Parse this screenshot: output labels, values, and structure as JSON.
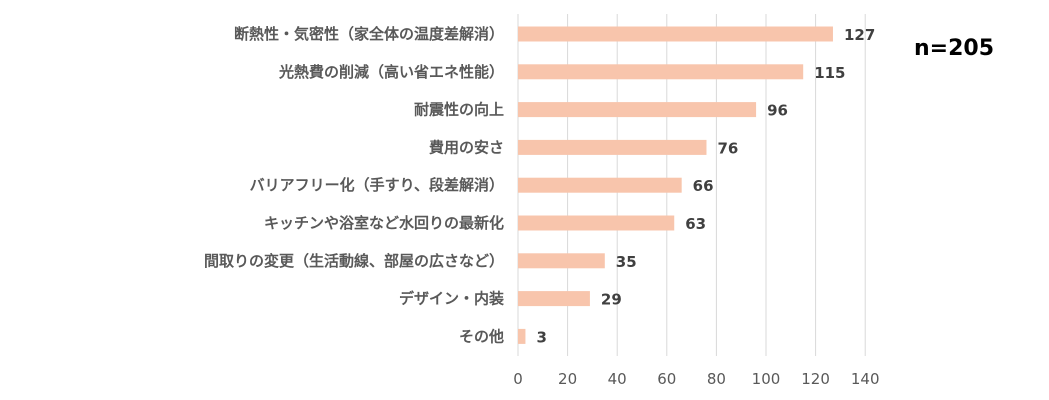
{
  "chart_data": {
    "type": "bar",
    "orientation": "horizontal",
    "categories": [
      "断熱性・気密性（家全体の温度差解消）",
      "光熱費の削減（高い省エネ性能）",
      "耐震性の向上",
      "費用の安さ",
      "バリアフリー化（手すり、段差解消）",
      "キッチンや浴室など水回りの最新化",
      "間取りの変更（生活動線、部屋の広さなど）",
      "デザイン・内装",
      "その他"
    ],
    "values": [
      127,
      115,
      96,
      76,
      66,
      63,
      35,
      29,
      3
    ],
    "value_labels": [
      "127",
      "115",
      "96",
      "76",
      "66",
      "63",
      "35",
      "29",
      "3"
    ],
    "xlim": [
      0,
      140
    ],
    "xticks": [
      0,
      20,
      40,
      60,
      80,
      100,
      120,
      140
    ],
    "xtick_labels": [
      "0",
      "20",
      "40",
      "60",
      "80",
      "100",
      "120",
      "140"
    ],
    "grid": "vertical",
    "bar_color": "#f8c5ac",
    "grid_color": "#d9d9d9",
    "annotation": "n=205"
  }
}
